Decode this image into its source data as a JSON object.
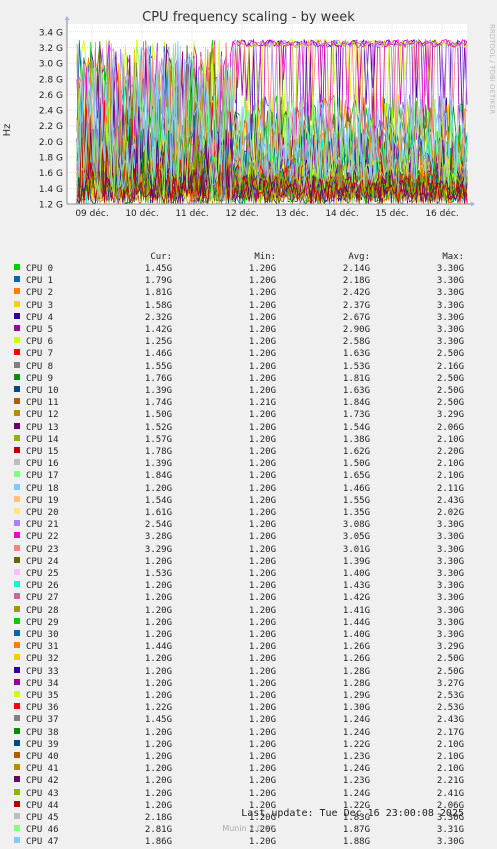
{
  "title": "CPU frequency scaling - by week",
  "side_text": "RRDTOOL / TOBI OETIKER",
  "footer": {
    "last_update": "Last update: Tue Dec 16 23:00:08 2025",
    "munin": "Munin 2.0.67"
  },
  "chart_data": {
    "type": "line",
    "title": "CPU frequency scaling - by week",
    "ylabel": "Hz",
    "xlabel": "",
    "ylim": [
      1.2,
      3.5
    ],
    "y_ticks": [
      "1.2 G",
      "1.4 G",
      "1.6 G",
      "1.8 G",
      "2.0 G",
      "2.2 G",
      "2.4 G",
      "2.6 G",
      "2.8 G",
      "3.0 G",
      "3.2 G",
      "3.4 G"
    ],
    "y_tick_values": [
      1.2,
      1.4,
      1.6,
      1.8,
      2.0,
      2.2,
      2.4,
      2.6,
      2.8,
      3.0,
      3.2,
      3.4
    ],
    "x_ticks": [
      "09 déc.",
      "10 déc.",
      "11 déc.",
      "12 déc.",
      "13 déc.",
      "14 déc.",
      "15 déc.",
      "16 déc."
    ],
    "x_range_days": [
      0,
      8
    ],
    "grid": true,
    "legend_columns": [
      "Cur:",
      "Min:",
      "Avg:",
      "Max:"
    ],
    "series": [
      {
        "name": "CPU 0",
        "color": "#00cc00",
        "cur": "1.45G",
        "min": "1.20G",
        "avg": "2.14G",
        "max": "3.30G"
      },
      {
        "name": "CPU 1",
        "color": "#0066b3",
        "cur": "1.79G",
        "min": "1.20G",
        "avg": "2.18G",
        "max": "3.30G"
      },
      {
        "name": "CPU 2",
        "color": "#ff8000",
        "cur": "1.81G",
        "min": "1.20G",
        "avg": "2.42G",
        "max": "3.30G"
      },
      {
        "name": "CPU 3",
        "color": "#ffcc00",
        "cur": "1.58G",
        "min": "1.20G",
        "avg": "2.37G",
        "max": "3.30G"
      },
      {
        "name": "CPU 4",
        "color": "#330099",
        "cur": "2.32G",
        "min": "1.20G",
        "avg": "2.67G",
        "max": "3.30G"
      },
      {
        "name": "CPU 5",
        "color": "#990099",
        "cur": "1.42G",
        "min": "1.20G",
        "avg": "2.90G",
        "max": "3.30G"
      },
      {
        "name": "CPU 6",
        "color": "#ccff00",
        "cur": "1.25G",
        "min": "1.20G",
        "avg": "2.58G",
        "max": "3.30G"
      },
      {
        "name": "CPU 7",
        "color": "#ff0000",
        "cur": "1.46G",
        "min": "1.20G",
        "avg": "1.63G",
        "max": "2.50G"
      },
      {
        "name": "CPU 8",
        "color": "#808080",
        "cur": "1.55G",
        "min": "1.20G",
        "avg": "1.53G",
        "max": "2.16G"
      },
      {
        "name": "CPU 9",
        "color": "#008f00",
        "cur": "1.76G",
        "min": "1.20G",
        "avg": "1.81G",
        "max": "2.50G"
      },
      {
        "name": "CPU 10",
        "color": "#00487d",
        "cur": "1.39G",
        "min": "1.20G",
        "avg": "1.63G",
        "max": "2.50G"
      },
      {
        "name": "CPU 11",
        "color": "#b35a00",
        "cur": "1.74G",
        "min": "1.21G",
        "avg": "1.84G",
        "max": "2.50G"
      },
      {
        "name": "CPU 12",
        "color": "#b38f00",
        "cur": "1.50G",
        "min": "1.20G",
        "avg": "1.73G",
        "max": "3.29G"
      },
      {
        "name": "CPU 13",
        "color": "#6b006b",
        "cur": "1.52G",
        "min": "1.20G",
        "avg": "1.54G",
        "max": "2.06G"
      },
      {
        "name": "CPU 14",
        "color": "#8fb300",
        "cur": "1.57G",
        "min": "1.20G",
        "avg": "1.38G",
        "max": "2.10G"
      },
      {
        "name": "CPU 15",
        "color": "#b30000",
        "cur": "1.78G",
        "min": "1.20G",
        "avg": "1.62G",
        "max": "2.20G"
      },
      {
        "name": "CPU 16",
        "color": "#bebebe",
        "cur": "1.39G",
        "min": "1.20G",
        "avg": "1.50G",
        "max": "2.10G"
      },
      {
        "name": "CPU 17",
        "color": "#80ff80",
        "cur": "1.84G",
        "min": "1.20G",
        "avg": "1.65G",
        "max": "2.10G"
      },
      {
        "name": "CPU 18",
        "color": "#80c9ff",
        "cur": "1.20G",
        "min": "1.20G",
        "avg": "1.46G",
        "max": "2.11G"
      },
      {
        "name": "CPU 19",
        "color": "#ffc080",
        "cur": "1.54G",
        "min": "1.20G",
        "avg": "1.55G",
        "max": "2.43G"
      },
      {
        "name": "CPU 20",
        "color": "#ffe680",
        "cur": "1.61G",
        "min": "1.20G",
        "avg": "1.35G",
        "max": "2.02G"
      },
      {
        "name": "CPU 21",
        "color": "#aa80ff",
        "cur": "2.54G",
        "min": "1.20G",
        "avg": "3.08G",
        "max": "3.30G"
      },
      {
        "name": "CPU 22",
        "color": "#ee00cc",
        "cur": "3.28G",
        "min": "1.20G",
        "avg": "3.05G",
        "max": "3.30G"
      },
      {
        "name": "CPU 23",
        "color": "#ff8080",
        "cur": "3.29G",
        "min": "1.20G",
        "avg": "3.01G",
        "max": "3.30G"
      },
      {
        "name": "CPU 24",
        "color": "#666600",
        "cur": "1.20G",
        "min": "1.20G",
        "avg": "1.39G",
        "max": "3.30G"
      },
      {
        "name": "CPU 25",
        "color": "#ffbfff",
        "cur": "1.53G",
        "min": "1.20G",
        "avg": "1.40G",
        "max": "3.30G"
      },
      {
        "name": "CPU 26",
        "color": "#00ffcc",
        "cur": "1.20G",
        "min": "1.20G",
        "avg": "1.43G",
        "max": "3.30G"
      },
      {
        "name": "CPU 27",
        "color": "#cc6699",
        "cur": "1.20G",
        "min": "1.20G",
        "avg": "1.42G",
        "max": "3.30G"
      },
      {
        "name": "CPU 28",
        "color": "#999900",
        "cur": "1.20G",
        "min": "1.20G",
        "avg": "1.41G",
        "max": "3.30G"
      },
      {
        "name": "CPU 29",
        "color": "#00cc00",
        "cur": "1.20G",
        "min": "1.20G",
        "avg": "1.44G",
        "max": "3.30G"
      },
      {
        "name": "CPU 30",
        "color": "#0066b3",
        "cur": "1.20G",
        "min": "1.20G",
        "avg": "1.40G",
        "max": "3.30G"
      },
      {
        "name": "CPU 31",
        "color": "#ff8000",
        "cur": "1.44G",
        "min": "1.20G",
        "avg": "1.26G",
        "max": "3.29G"
      },
      {
        "name": "CPU 32",
        "color": "#ffcc00",
        "cur": "1.20G",
        "min": "1.20G",
        "avg": "1.26G",
        "max": "2.50G"
      },
      {
        "name": "CPU 33",
        "color": "#330099",
        "cur": "1.20G",
        "min": "1.20G",
        "avg": "1.28G",
        "max": "2.50G"
      },
      {
        "name": "CPU 34",
        "color": "#990099",
        "cur": "1.20G",
        "min": "1.20G",
        "avg": "1.28G",
        "max": "3.27G"
      },
      {
        "name": "CPU 35",
        "color": "#ccff00",
        "cur": "1.20G",
        "min": "1.20G",
        "avg": "1.29G",
        "max": "2.53G"
      },
      {
        "name": "CPU 36",
        "color": "#ff0000",
        "cur": "1.22G",
        "min": "1.20G",
        "avg": "1.30G",
        "max": "2.53G"
      },
      {
        "name": "CPU 37",
        "color": "#808080",
        "cur": "1.45G",
        "min": "1.20G",
        "avg": "1.24G",
        "max": "2.43G"
      },
      {
        "name": "CPU 38",
        "color": "#008f00",
        "cur": "1.20G",
        "min": "1.20G",
        "avg": "1.24G",
        "max": "2.17G"
      },
      {
        "name": "CPU 39",
        "color": "#00487d",
        "cur": "1.20G",
        "min": "1.20G",
        "avg": "1.22G",
        "max": "2.10G"
      },
      {
        "name": "CPU 40",
        "color": "#b35a00",
        "cur": "1.20G",
        "min": "1.20G",
        "avg": "1.23G",
        "max": "2.10G"
      },
      {
        "name": "CPU 41",
        "color": "#b38f00",
        "cur": "1.20G",
        "min": "1.20G",
        "avg": "1.24G",
        "max": "2.10G"
      },
      {
        "name": "CPU 42",
        "color": "#6b006b",
        "cur": "1.20G",
        "min": "1.20G",
        "avg": "1.23G",
        "max": "2.21G"
      },
      {
        "name": "CPU 43",
        "color": "#8fb300",
        "cur": "1.20G",
        "min": "1.20G",
        "avg": "1.24G",
        "max": "2.41G"
      },
      {
        "name": "CPU 44",
        "color": "#b30000",
        "cur": "1.20G",
        "min": "1.20G",
        "avg": "1.22G",
        "max": "2.06G"
      },
      {
        "name": "CPU 45",
        "color": "#bebebe",
        "cur": "2.18G",
        "min": "1.20G",
        "avg": "1.83G",
        "max": "3.30G"
      },
      {
        "name": "CPU 46",
        "color": "#80ff80",
        "cur": "2.81G",
        "min": "1.20G",
        "avg": "1.87G",
        "max": "3.31G"
      },
      {
        "name": "CPU 47",
        "color": "#80c9ff",
        "cur": "1.86G",
        "min": "1.20G",
        "avg": "1.88G",
        "max": "3.30G"
      }
    ]
  }
}
